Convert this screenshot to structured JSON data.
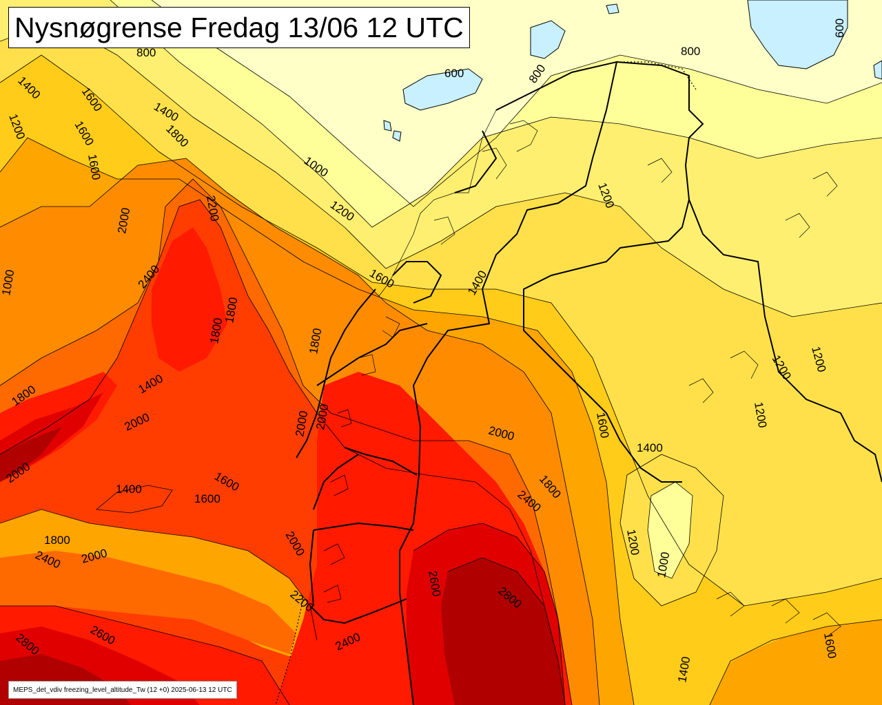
{
  "title": "Nysnøgrense Fredag 13/06 12 UTC",
  "footer": "MEPS_det_vdiv freezing_level_altitude_Tw (12 +0) 2025-06-13 12 UTC",
  "color_scale": {
    "below_800": "#ffffc8",
    "c800_1000": "#ffff99",
    "c1000_1200": "#ffef70",
    "c1200_1400": "#ffe04a",
    "c1400_1600": "#ffcc1a",
    "c1600_1800": "#ffa500",
    "c1800_2000": "#ff8c00",
    "c2000_2200": "#ff6a00",
    "c2200_2400": "#ff3d00",
    "c2400_2600": "#ff1a00",
    "c2600_2800": "#e00000",
    "c2800_plus": "#b00000",
    "water": "#c8f0ff"
  },
  "contour_labels": {
    "l1": "800",
    "l2": "600",
    "l3": "800",
    "l4": "800",
    "l5": "600",
    "l6": "1400",
    "l7": "1600",
    "l8": "1200",
    "l9": "1400",
    "l10": "1800",
    "l11": "1600",
    "l12": "1600",
    "l13": "1000",
    "l14": "2200",
    "l15": "2000",
    "l16": "1200",
    "l17": "2400",
    "l18": "1000",
    "l19": "1800",
    "l20": "1800",
    "l21": "1800",
    "l22": "1600",
    "l23": "1200",
    "l24": "1400",
    "l25": "1800",
    "l26": "1400",
    "l27": "2000",
    "l28": "2000",
    "l29": "2000",
    "l30": "2000",
    "l31": "1600",
    "l32": "1400",
    "l33": "1600",
    "l34": "2000",
    "l35": "1800",
    "l36": "2400",
    "l37": "1200",
    "l38": "1200",
    "l39": "1400",
    "l40": "1600",
    "l41": "1800",
    "l42": "2000",
    "l43": "1200",
    "l44": "1000",
    "l45": "2400",
    "l46": "2200",
    "l47": "2600",
    "l48": "2800",
    "l49": "2600",
    "l50": "2800",
    "l51": "2400",
    "l52": "1400",
    "l53": "1600",
    "l54": "1200",
    "l55": "2000"
  }
}
